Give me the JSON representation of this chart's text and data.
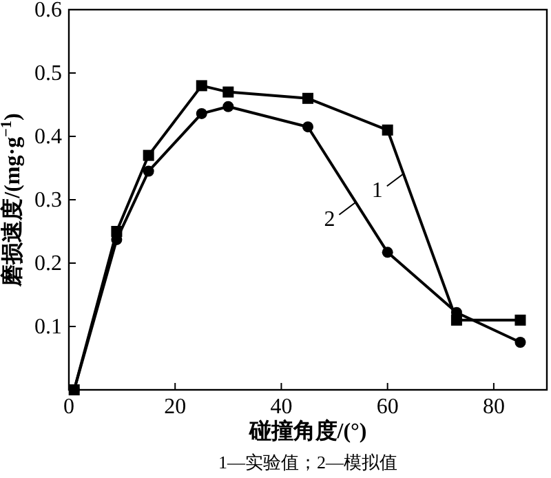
{
  "chart_data": {
    "type": "line",
    "xlabel": "碰撞角度/(°)",
    "ylabel": "磨损速度/(mg·g$^{−1}$)",
    "xlim": [
      0,
      90
    ],
    "xticks": [
      0,
      20,
      40,
      60,
      80
    ],
    "ylim": [
      0,
      0.6
    ],
    "yticks": [
      0.1,
      0.2,
      0.3,
      0.4,
      0.5,
      0.6
    ],
    "grid": false,
    "line_style": "solid",
    "series": [
      {
        "color": "#000000",
        "marker": "square",
        "x": [
          1,
          9,
          15,
          25,
          30,
          45,
          60,
          73,
          85
        ],
        "values": [
          0,
          0.25,
          0.37,
          0.48,
          0.47,
          0.46,
          0.41,
          0.11,
          0.11
        ]
      },
      {
        "color": "#000000",
        "marker": "circle",
        "x": [
          1,
          9,
          15,
          25,
          30,
          45,
          60,
          73,
          85
        ],
        "values": [
          0,
          0.237,
          0.345,
          0.436,
          0.447,
          0.415,
          0.217,
          0.122,
          0.075
        ]
      }
    ],
    "annotations": [
      {
        "text": "1",
        "x": 63,
        "y": 0.341
      },
      {
        "text": "2",
        "x": 54,
        "y": 0.296
      },
      "1—实验值；2—模拟值"
    ]
  }
}
